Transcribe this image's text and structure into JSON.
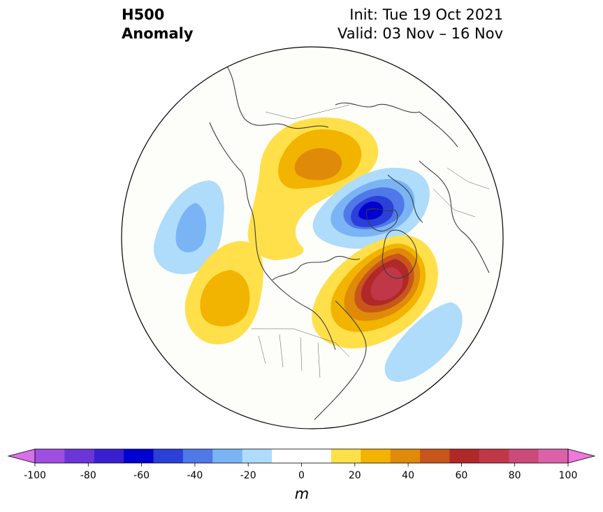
{
  "title": {
    "line1": "H500",
    "line2": "Anomaly"
  },
  "subtitle": {
    "init": "Init: Tue 19 Oct 2021",
    "valid": "Valid: 03 Nov – 16 Nov"
  },
  "colorbar": {
    "unit": "m",
    "min": -100,
    "max": 100,
    "step": 10,
    "colors": [
      "#d870e8",
      "#9e4ee0",
      "#6b35d8",
      "#3a1fd0",
      "#0000d0",
      "#2a40d8",
      "#5078e8",
      "#7ab4f4",
      "#aedcfa",
      "#ffffff",
      "#ffffff",
      "#ffe04a",
      "#f2b400",
      "#e08a0a",
      "#c8561a",
      "#b02828",
      "#c03848",
      "#cc4a7a",
      "#dc62a8",
      "#ee78dc"
    ],
    "ticks": [
      "-100",
      "-80",
      "-60",
      "-40",
      "-20",
      "0",
      "20",
      "40",
      "60",
      "80",
      "100"
    ]
  },
  "anomalies": [
    {
      "sign": "negative",
      "peak": -70,
      "region": "northern Scandinavia / Barents Sea"
    },
    {
      "sign": "positive",
      "peak": 70,
      "region": "Hudson Bay / Baffin Island"
    },
    {
      "sign": "positive",
      "peak": 40,
      "region": "Arctic Ocean / East Siberia"
    },
    {
      "sign": "positive",
      "peak": 20,
      "region": "Gulf of Alaska"
    },
    {
      "sign": "negative",
      "peak": -30,
      "region": "North Pacific / Kamchatka"
    },
    {
      "sign": "negative",
      "peak": -20,
      "region": "North Atlantic"
    }
  ]
}
